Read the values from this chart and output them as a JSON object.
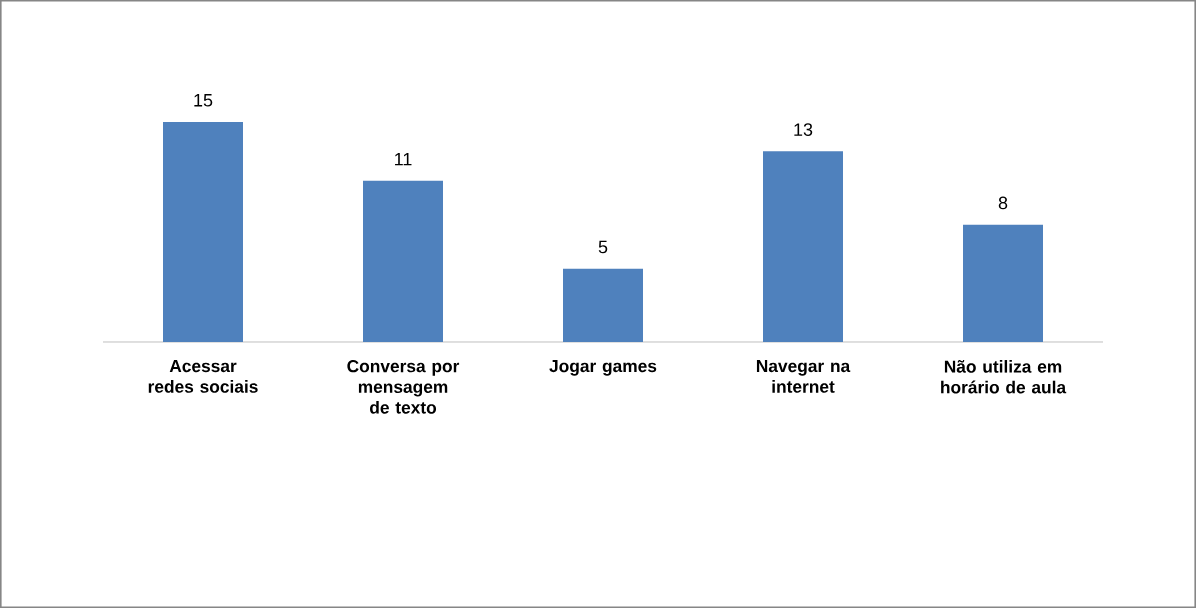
{
  "chart_data": {
    "type": "bar",
    "categories": [
      "Acessar redes sociais",
      "Conversa por mensagem de texto",
      "Jogar games",
      "Navegar na internet",
      "Não utiliza em horário de aula"
    ],
    "values": [
      15,
      11,
      5,
      13,
      8
    ],
    "color": "#4f81bd",
    "data_labels": true
  }
}
